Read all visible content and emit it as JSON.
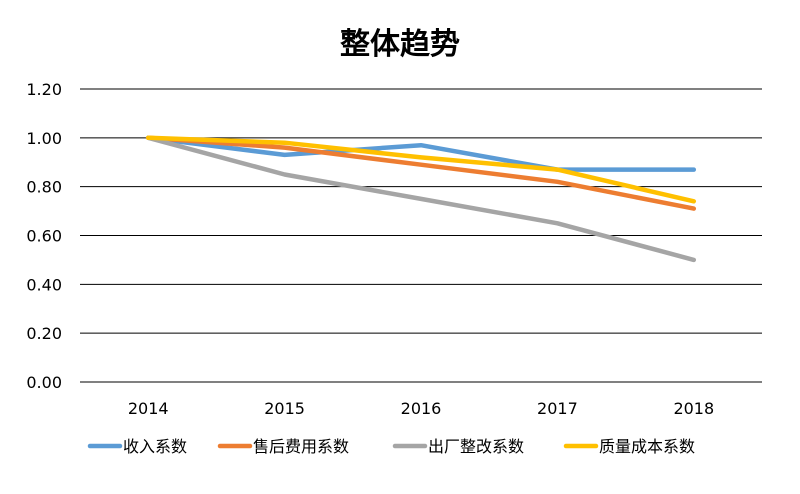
{
  "chart_data": {
    "type": "line",
    "title": "整体趋势",
    "xlabel": "",
    "ylabel": "",
    "categories": [
      "2014",
      "2015",
      "2016",
      "2017",
      "2018"
    ],
    "ylim": [
      0,
      1.2
    ],
    "yticks": [
      "0.00",
      "0.20",
      "0.40",
      "0.60",
      "0.80",
      "1.00",
      "1.20"
    ],
    "grid": true,
    "legend_position": "bottom",
    "series": [
      {
        "name": "收入系数",
        "color": "#5B9BD5",
        "values": [
          1.0,
          0.93,
          0.97,
          0.87,
          0.87
        ]
      },
      {
        "name": "售后费用系数",
        "color": "#ED7D31",
        "values": [
          1.0,
          0.96,
          0.89,
          0.82,
          0.71
        ]
      },
      {
        "name": "出厂整改系数",
        "color": "#A5A5A5",
        "values": [
          1.0,
          0.85,
          0.75,
          0.65,
          0.5
        ]
      },
      {
        "name": "质量成本系数",
        "color": "#FFC000",
        "values": [
          1.0,
          0.98,
          0.92,
          0.87,
          0.74
        ]
      }
    ]
  }
}
